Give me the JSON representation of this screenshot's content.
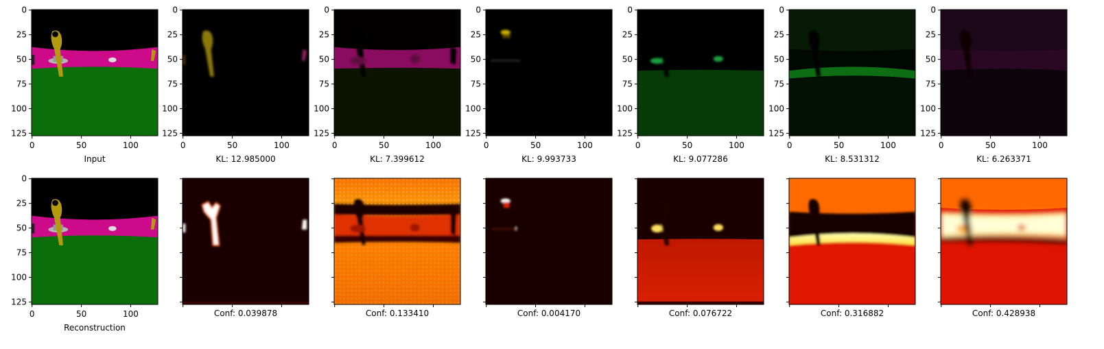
{
  "figure": {
    "top_row_captions": [
      "Input",
      "KL: 12.985000",
      "KL: 7.399612",
      "KL: 9.993733",
      "KL: 9.077286",
      "KL: 8.531312",
      "KL: 6.263371"
    ],
    "bottom_row_captions": [
      "Reconstruction",
      "Conf: 0.039878",
      "Conf: 0.133410",
      "Conf: 0.004170",
      "Conf: 0.076722",
      "Conf: 0.316882",
      "Conf: 0.428938"
    ],
    "x_ticks": [
      "0",
      "50",
      "100"
    ],
    "y_ticks": [
      "0",
      "25",
      "50",
      "75",
      "100",
      "125"
    ],
    "colors": {
      "sky": "#000000",
      "wall_magenta": "#cc0a8a",
      "floor_green": "#0b6e0b",
      "key_yellow": "#b39a10",
      "object_silver": "#b8b8b8",
      "heat_low": "#1a0000",
      "heat_mid": "#e02000",
      "heat_high": "#fff6a0"
    }
  }
}
